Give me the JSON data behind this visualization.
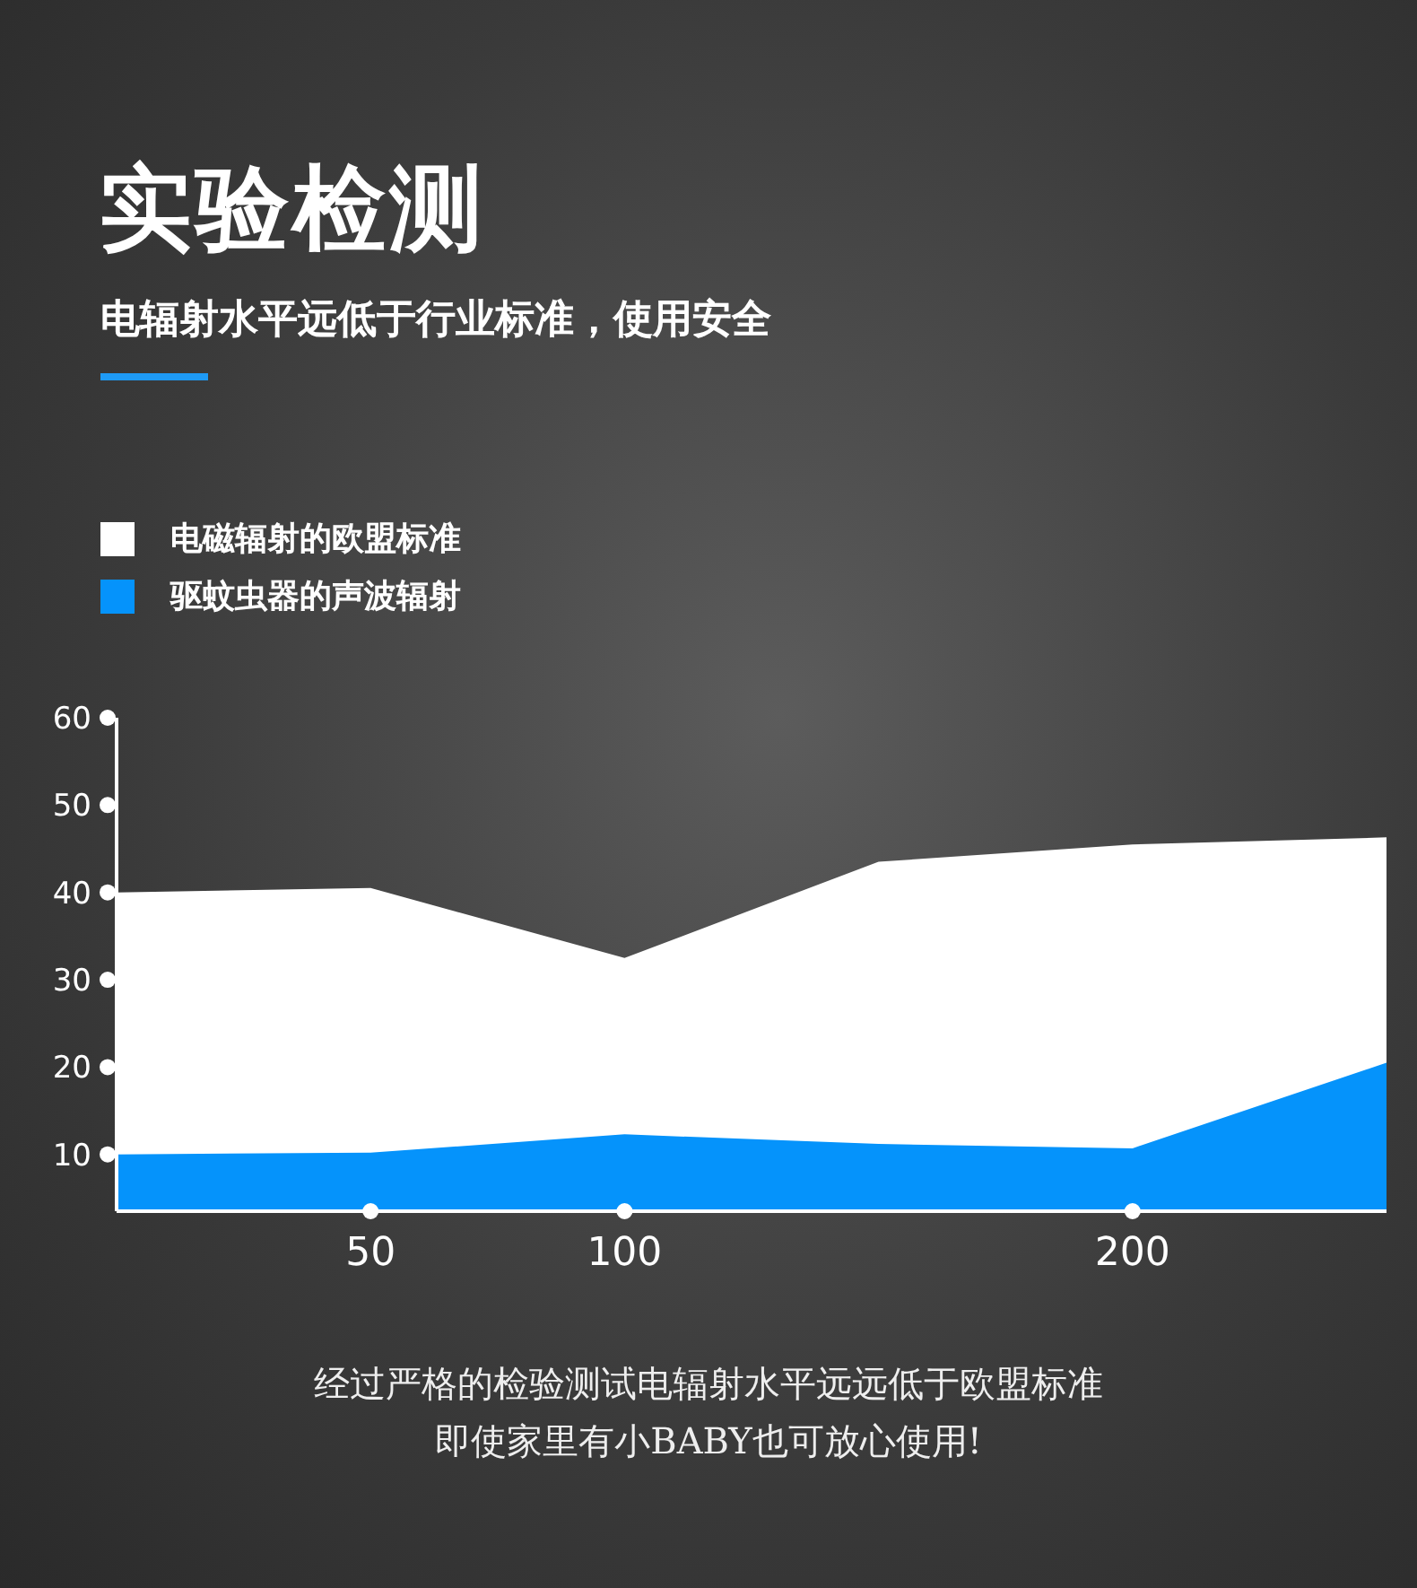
{
  "chart_data": {
    "type": "area",
    "title": "实验检测",
    "subtitle": "电辐射水平远低于行业标准，使用安全",
    "categories": [
      null,
      "50",
      "100",
      null,
      "200",
      null
    ],
    "series": [
      {
        "name": "电磁辐射的欧盟标准",
        "color": "#ffffff",
        "values": [
          40,
          40.5,
          32.5,
          43.5,
          45.5,
          46.3
        ]
      },
      {
        "name": "驱蚊虫器的声波辐射",
        "color": "#0593fb",
        "values": [
          10,
          10.2,
          12.3,
          11.2,
          10.7,
          20.5
        ]
      }
    ],
    "ylim": [
      3.5,
      60
    ],
    "yticks": [
      10,
      20,
      30,
      40,
      50,
      60
    ],
    "legend": "top left",
    "annotations": [
      "经过严格的检验测试电辐射水平远远低于欧盟标准",
      "即使家里有小BABY也可放心使用!"
    ]
  }
}
